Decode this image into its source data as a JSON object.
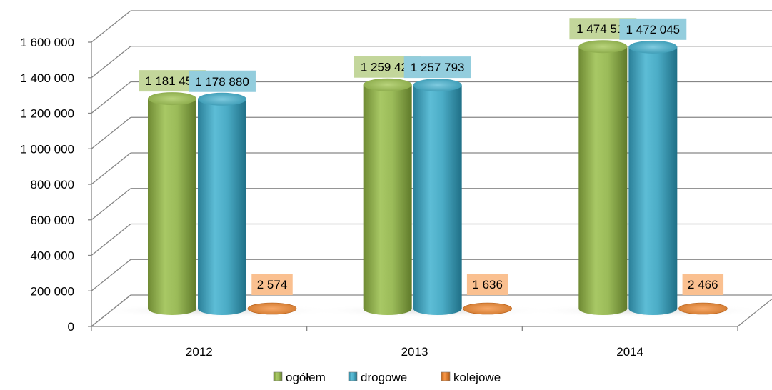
{
  "chart_data": {
    "type": "bar",
    "style": "3d-cylinder",
    "categories": [
      "2012",
      "2013",
      "2014"
    ],
    "series": [
      {
        "name": "ogółem",
        "values": [
          1181454,
          1259429,
          1474511
        ],
        "labels": [
          "1 181 454",
          "1 259 429",
          "1 474 511"
        ],
        "color": "#9bbb59",
        "label_bg": "#c3d69b"
      },
      {
        "name": "drogowe",
        "values": [
          1178880,
          1257793,
          1472045
        ],
        "labels": [
          "1 178 880",
          "1 257 793",
          "1 472 045"
        ],
        "color": "#4bacc6",
        "label_bg": "#93cddd"
      },
      {
        "name": "kolejowe",
        "values": [
          2574,
          1636,
          2466
        ],
        "labels": [
          "2 574",
          "1 636",
          "2 466"
        ],
        "color": "#f79646",
        "label_bg": "#fac090"
      }
    ],
    "ylim": [
      0,
      1600000
    ],
    "yticks": [
      0,
      200000,
      400000,
      600000,
      800000,
      1000000,
      1200000,
      1400000,
      1600000
    ],
    "ytick_labels": [
      "0",
      "200 000",
      "400 000",
      "600 000",
      "800 000",
      "1 000 000",
      "1 200 000",
      "1 400 000",
      "1 600 000"
    ],
    "grid": true,
    "legend_position": "bottom",
    "title": "",
    "xlabel": "",
    "ylabel": ""
  }
}
